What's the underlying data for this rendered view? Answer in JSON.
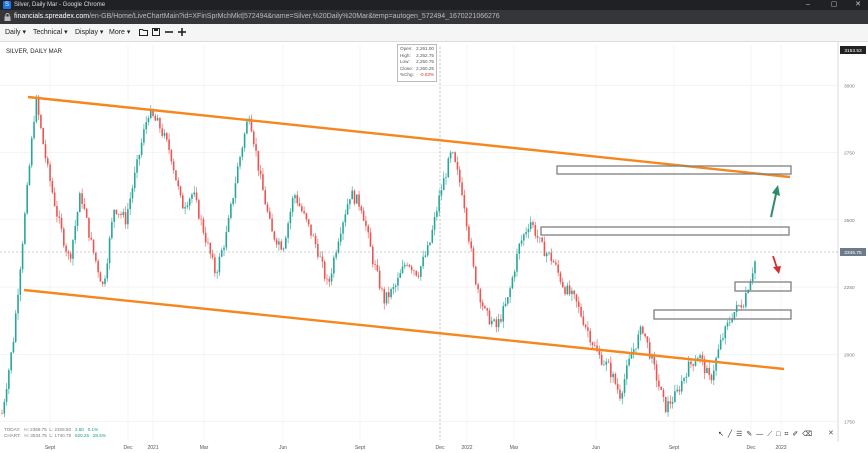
{
  "window": {
    "title": "Silver, Daily Mar - Google Chrome",
    "favicon_letter": "S",
    "controls": [
      "–",
      "▢",
      "✕"
    ]
  },
  "address": {
    "domain": "financials.spreadex.com",
    "path": "/en-GB/Home/LiveChartMain?id=XFinSprMchMkt|572494&name=Silver,%20Daily%20Mar&temp=autogen_572494_1670221066276"
  },
  "toolbar": {
    "daily_label": "Daily",
    "technical_label": "Technical",
    "display_label": "Display",
    "more_label": "More"
  },
  "chart": {
    "title": "SILVER, DAILY MAR",
    "ohlc": [
      {
        "label": "Open:",
        "value": "2,261.00"
      },
      {
        "label": "High:",
        "value": "2,262.75"
      },
      {
        "label": "Low:",
        "value": "2,250.75"
      },
      {
        "label": "Close:",
        "value": "2,260.25"
      },
      {
        "label": "%Chg:",
        "value": "-0.03%"
      }
    ],
    "top_price": "3153.53",
    "last_price": "2345.75",
    "footer": {
      "today_label": "TODAY:",
      "today_h": "H: 2368.75",
      "today_l": "L: 2328.50",
      "today_chg": "2.50",
      "today_pct": "0.1%",
      "chart_label": "CHART:",
      "chart_h": "H: 3034.75",
      "chart_l": "L: 1740.75",
      "chart_chg": "520.25",
      "chart_pct": "28.5%"
    },
    "colors": {
      "up": "#26a69a",
      "down": "#ef5350",
      "trendline": "#f5871f",
      "zone": "#808080",
      "arrow_up": "#2e8b6e",
      "arrow_down": "#d32f2f"
    }
  },
  "chart_data": {
    "type": "candlestick",
    "title": "SILVER, DAILY MAR",
    "y_ticks": [
      1750,
      2000,
      2250,
      2500,
      2750,
      3000
    ],
    "ylim": [
      1700,
      3150
    ],
    "x_tick_labels": [
      "Sept",
      "Dec",
      "2021",
      "Mar",
      "Jun",
      "Sept",
      "Dec",
      "2022",
      "Mar",
      "Jun",
      "Sept",
      "Dec",
      "2023"
    ],
    "close_path": [
      1780,
      2050,
      2500,
      2950,
      2700,
      2500,
      2350,
      2600,
      2400,
      2250,
      2550,
      2500,
      2700,
      2900,
      2850,
      2750,
      2550,
      2600,
      2450,
      2300,
      2450,
      2700,
      2900,
      2650,
      2450,
      2400,
      2600,
      2500,
      2400,
      2250,
      2450,
      2600,
      2550,
      2350,
      2200,
      2250,
      2350,
      2300,
      2400,
      2600,
      2750,
      2600,
      2300,
      2150,
      2100,
      2200,
      2400,
      2500,
      2400,
      2350,
      2250,
      2200,
      2100,
      2000,
      1950,
      1850,
      2000,
      2100,
      1950,
      1800,
      1850,
      1950,
      2000,
      1900,
      2050,
      2150,
      2200,
      2345
    ],
    "trendlines": [
      {
        "from": [
          "Sept",
          3000
        ],
        "to": [
          "Dec 2022",
          2650
        ]
      },
      {
        "from": [
          "Sept",
          2200
        ],
        "to": [
          "Dec 2022",
          1880
        ]
      }
    ],
    "zones": [
      {
        "low": 2650,
        "high": 2700
      },
      {
        "low": 2410,
        "high": 2440
      },
      {
        "low": 2190,
        "high": 2220
      },
      {
        "low": 2060,
        "high": 2100
      }
    ],
    "last_price": 2345.75
  }
}
